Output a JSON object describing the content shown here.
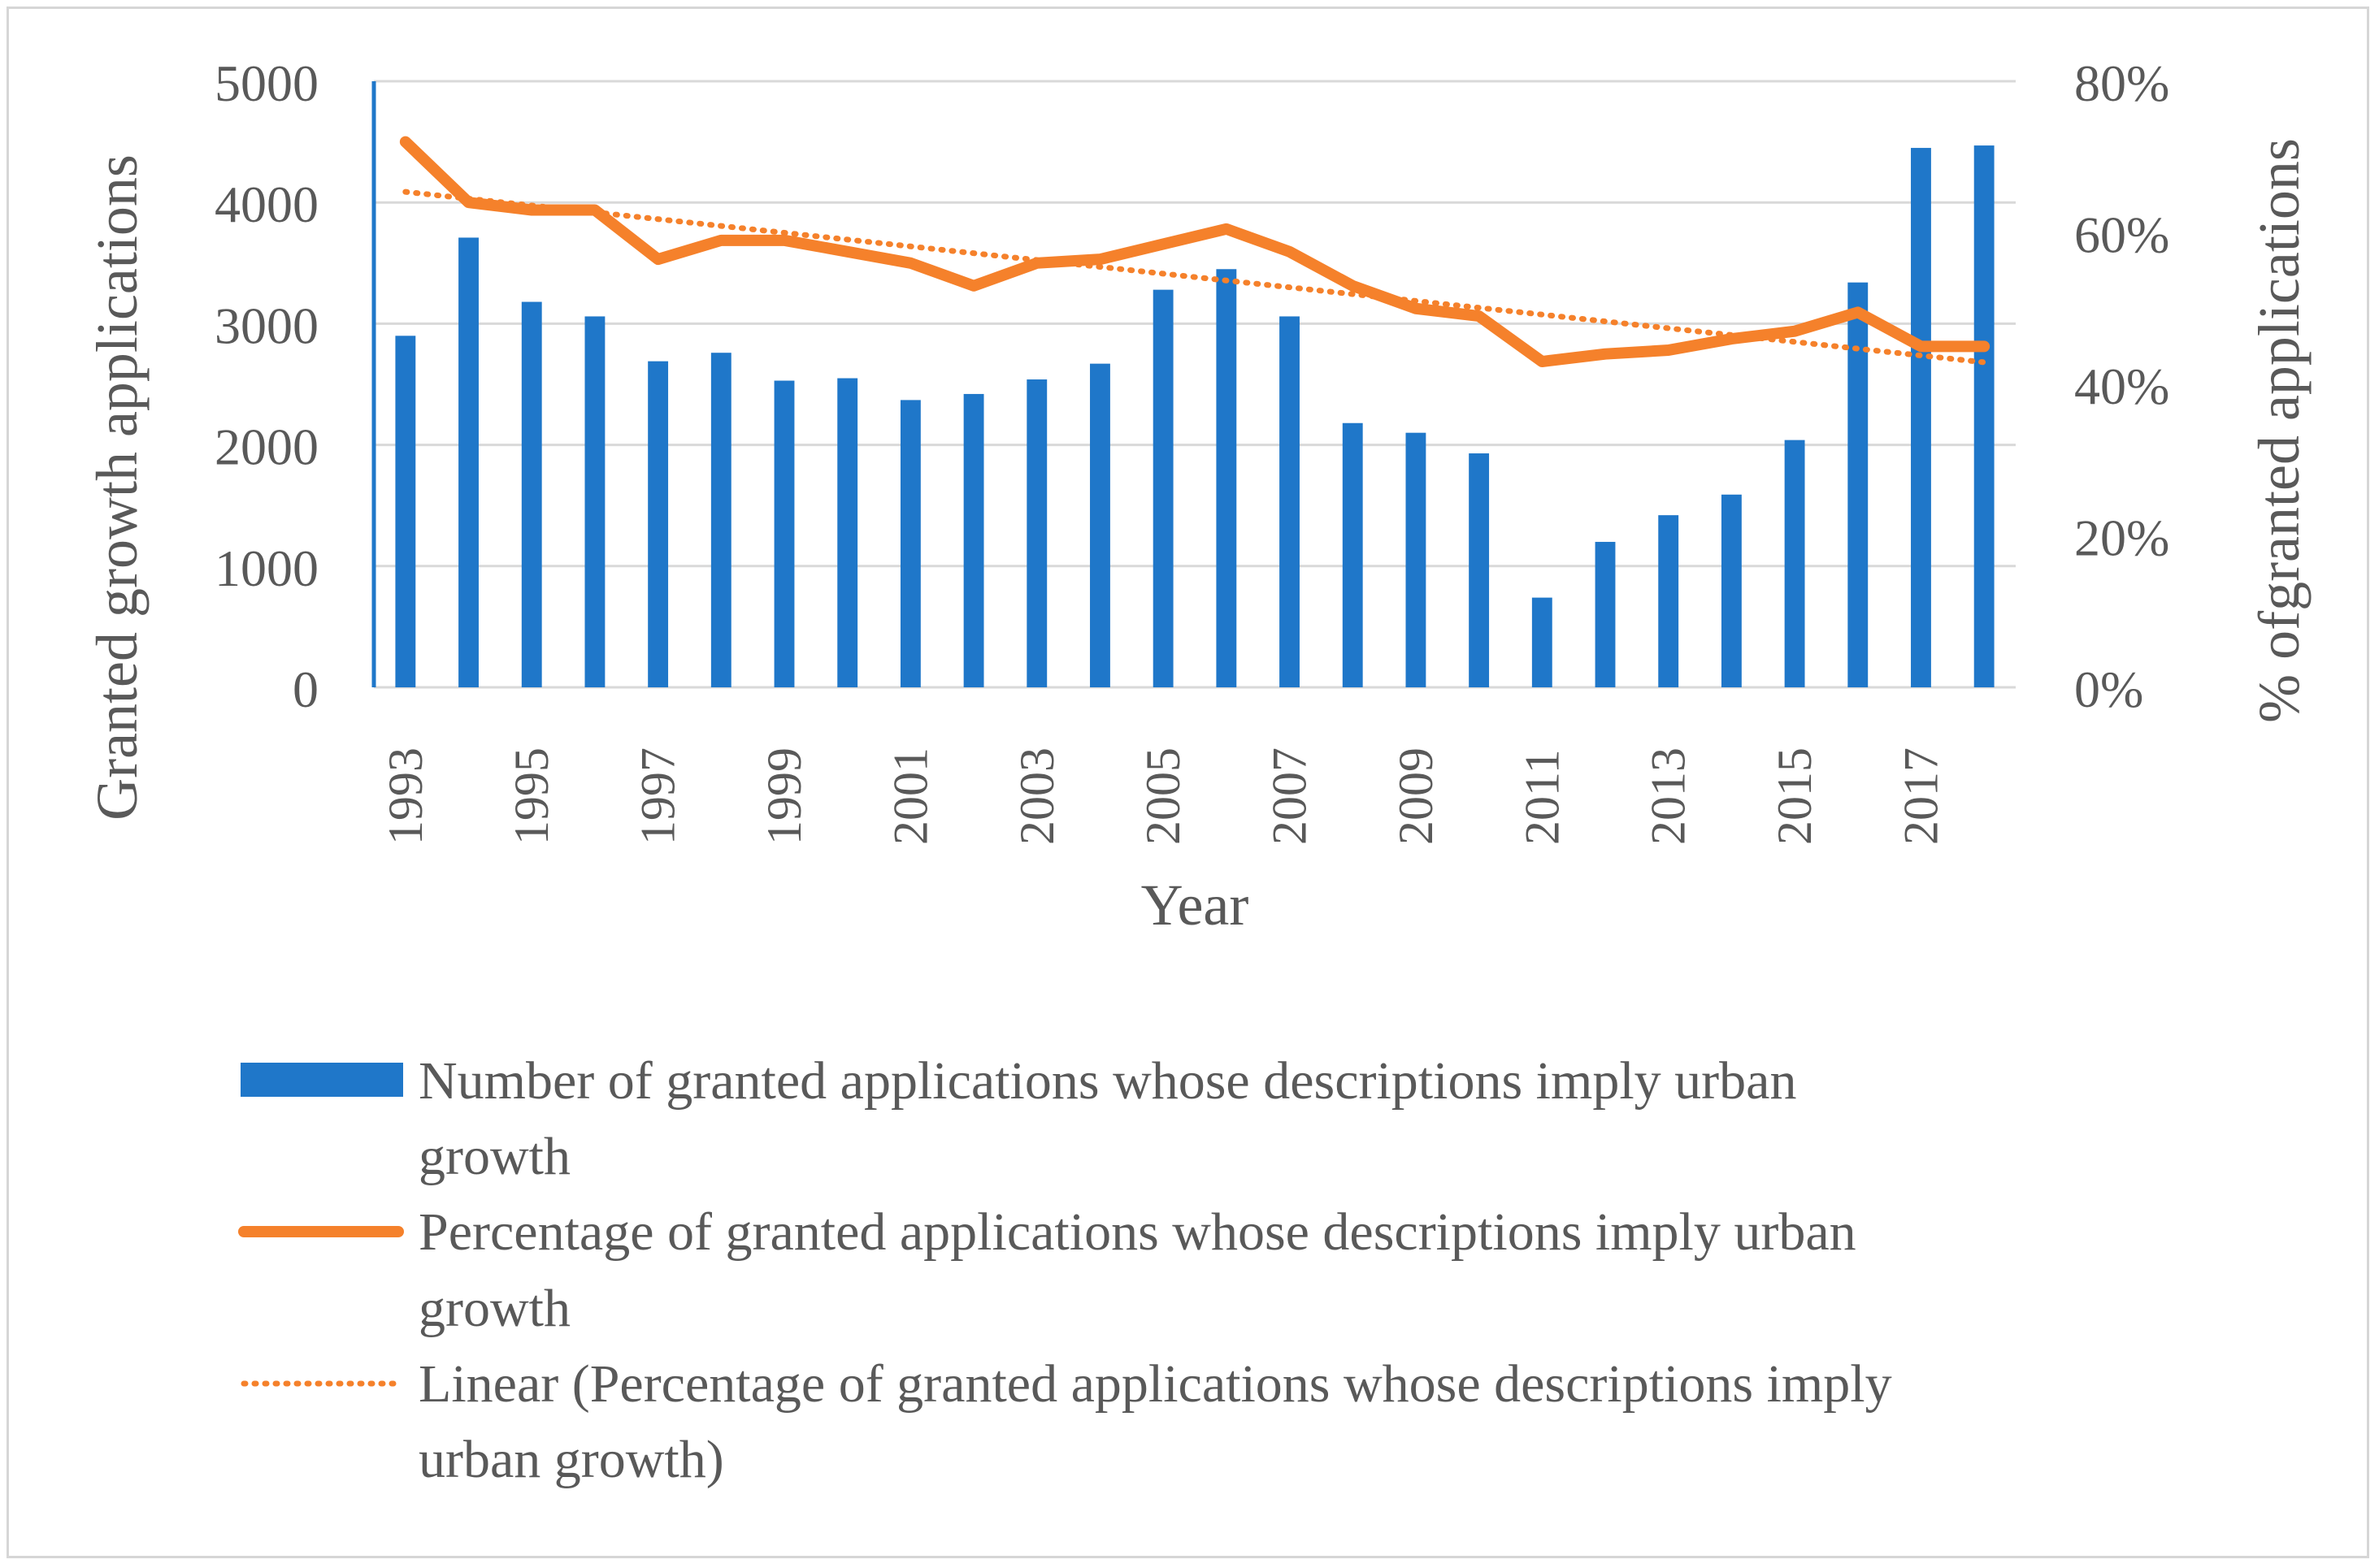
{
  "chart_data": {
    "type": "bar+line",
    "categories": [
      "1993",
      "1994",
      "1995",
      "1996",
      "1997",
      "1998",
      "1999",
      "2000",
      "2001",
      "2002",
      "2003",
      "2004",
      "2005",
      "2006",
      "2007",
      "2008",
      "2009",
      "2010",
      "2011",
      "2012",
      "2013",
      "2014",
      "2015",
      "2016",
      "2017",
      "2018"
    ],
    "tick_labels": [
      "1993",
      "1995",
      "1997",
      "1999",
      "2001",
      "2003",
      "2005",
      "2007",
      "2009",
      "2011",
      "2013",
      "2015",
      "2017"
    ],
    "series": [
      {
        "name": "Number of granted applications whose descriptions imply urban growth",
        "type": "bar",
        "axis": "left",
        "color": "#1f77c9",
        "values": [
          2900,
          3710,
          3180,
          3060,
          2690,
          2760,
          2530,
          2550,
          2370,
          2420,
          2540,
          2670,
          3280,
          3450,
          3060,
          2180,
          2100,
          1930,
          740,
          1200,
          1420,
          1590,
          2040,
          3340,
          4450,
          4470
        ]
      },
      {
        "name": "Percentage of granted applications whose descriptions imply urban growth",
        "type": "line",
        "axis": "right",
        "color": "#f5812b",
        "values": [
          0.72,
          0.64,
          0.63,
          0.63,
          0.565,
          0.59,
          0.59,
          0.575,
          0.56,
          0.53,
          0.56,
          0.565,
          0.585,
          0.605,
          0.575,
          0.53,
          0.5,
          0.49,
          0.43,
          0.44,
          0.445,
          0.46,
          0.47,
          0.495,
          0.45,
          0.45
        ]
      },
      {
        "name": "Linear (Percentage of granted applications whose descriptions imply urban growth)",
        "type": "trendline",
        "axis": "right",
        "color": "#f5812b",
        "values": [
          0.654,
          0.645,
          0.636,
          0.627,
          0.618,
          0.609,
          0.6,
          0.591,
          0.582,
          0.573,
          0.564,
          0.555,
          0.546,
          0.537,
          0.528,
          0.519,
          0.51,
          0.501,
          0.492,
          0.483,
          0.474,
          0.465,
          0.456,
          0.447,
          0.438,
          0.429
        ]
      }
    ],
    "ylabel": "Granted growth applications",
    "y2label": "% ofgranted applications",
    "xlabel": "Year",
    "ylim": [
      0,
      5000
    ],
    "y2lim": [
      0,
      0.8
    ],
    "yticks": [
      "0",
      "1000",
      "2000",
      "3000",
      "4000",
      "5000"
    ],
    "y2ticks": [
      "0%",
      "20%",
      "40%",
      "60%",
      "80%"
    ],
    "grid": true,
    "legend_position": "bottom",
    "legend": [
      {
        "lines": [
          "Number of granted applications whose descriptions imply urban",
          "growth"
        ]
      },
      {
        "lines": [
          "Percentage of granted applications whose descriptions imply urban",
          "growth"
        ]
      },
      {
        "lines": [
          "Linear (Percentage of granted applications whose descriptions imply",
          "urban growth)"
        ]
      }
    ]
  }
}
